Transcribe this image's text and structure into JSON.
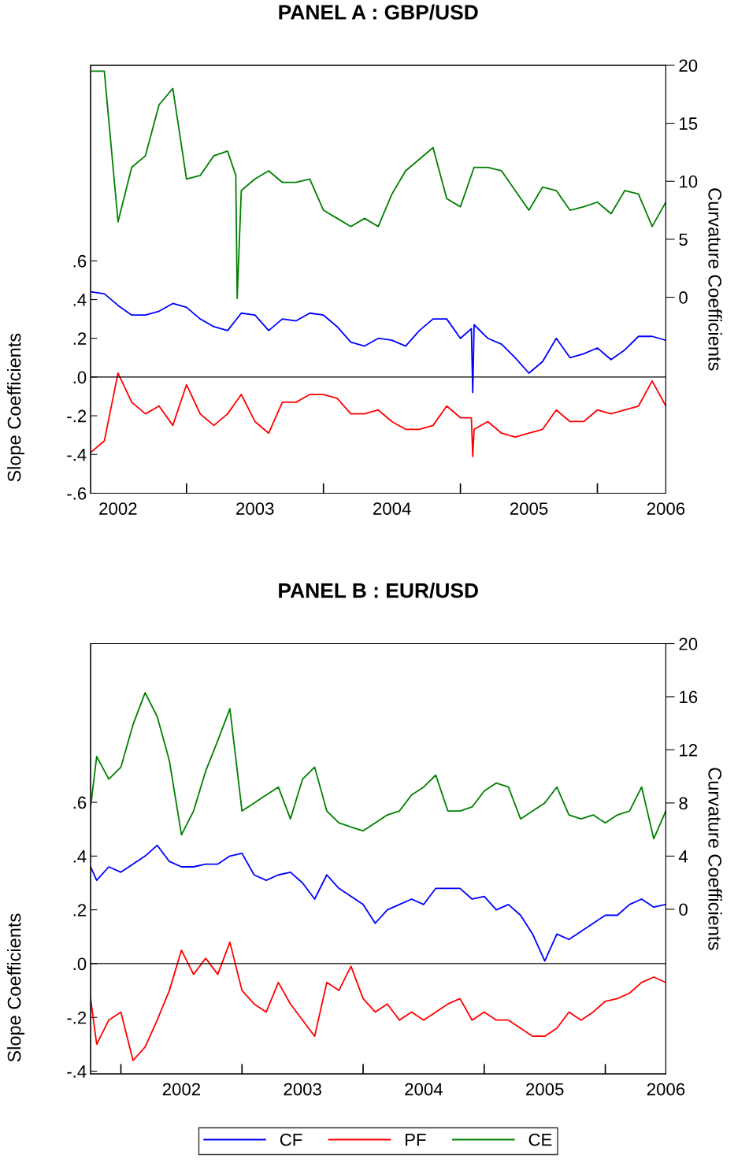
{
  "chart_data": [
    {
      "type": "line",
      "title": "PANEL A : GBP/USD",
      "ylabel": "Slope Coefficients",
      "y2label": "Curvature Coefficients",
      "x": [
        2002.3,
        2002.4,
        2002.5,
        2002.6,
        2002.7,
        2002.8,
        2002.9,
        2003.0,
        2003.1,
        2003.2,
        2003.3,
        2003.4,
        2003.5,
        2003.6,
        2003.7,
        2003.8,
        2003.9,
        2004.0,
        2004.1,
        2004.2,
        2004.3,
        2004.4,
        2004.5,
        2004.6,
        2004.7,
        2004.8,
        2004.9,
        2005.0,
        2005.08,
        2005.09,
        2005.1,
        2005.2,
        2005.3,
        2005.4,
        2005.5,
        2005.6,
        2005.7,
        2005.8,
        2005.9,
        2006.0,
        2006.1,
        2006.2,
        2006.3,
        2006.4,
        2006.5
      ],
      "series": [
        {
          "color": "#0000ff",
          "values": [
            0.44,
            0.43,
            0.37,
            0.32,
            0.32,
            0.34,
            0.38,
            0.36,
            0.3,
            0.26,
            0.24,
            0.33,
            0.32,
            0.24,
            0.3,
            0.29,
            0.33,
            0.32,
            0.26,
            0.18,
            0.16,
            0.2,
            0.19,
            0.16,
            0.24,
            0.3,
            0.3,
            0.2,
            0.25,
            -0.08,
            0.27,
            0.2,
            0.17,
            0.1,
            0.02,
            0.08,
            0.2,
            0.1,
            0.12,
            0.15,
            0.09,
            0.14,
            0.21,
            0.21,
            0.19
          ]
        },
        {
          "color": "#ff0000",
          "values": [
            -0.39,
            -0.33,
            0.02,
            -0.13,
            -0.19,
            -0.15,
            -0.25,
            -0.04,
            -0.19,
            -0.25,
            -0.19,
            -0.09,
            -0.23,
            -0.29,
            -0.13,
            -0.13,
            -0.09,
            -0.09,
            -0.11,
            -0.19,
            -0.19,
            -0.17,
            -0.23,
            -0.27,
            -0.27,
            -0.25,
            -0.15,
            -0.21,
            -0.21,
            -0.41,
            -0.27,
            -0.23,
            -0.29,
            -0.31,
            -0.29,
            -0.27,
            -0.17,
            -0.23,
            -0.23,
            -0.17,
            -0.19,
            -0.17,
            -0.15,
            -0.02,
            -0.15
          ]
        },
        {
          "color": "#008000",
          "axis": "y2",
          "x": [
            2002.3,
            2002.4,
            2002.5,
            2002.6,
            2002.7,
            2002.8,
            2002.9,
            2003.0,
            2003.1,
            2003.2,
            2003.3,
            2003.36,
            2003.37,
            2003.4,
            2003.5,
            2003.6,
            2003.7,
            2003.8,
            2003.9,
            2004.0,
            2004.1,
            2004.2,
            2004.3,
            2004.4,
            2004.5,
            2004.6,
            2004.7,
            2004.8,
            2004.9,
            2005.0,
            2005.1,
            2005.2,
            2005.3,
            2005.4,
            2005.5,
            2005.6,
            2005.7,
            2005.8,
            2005.9,
            2006.0,
            2006.1,
            2006.2,
            2006.3,
            2006.4,
            2006.5
          ],
          "values": [
            19.5,
            19.5,
            6.5,
            11.2,
            12.2,
            16.6,
            18.0,
            10.2,
            10.5,
            12.2,
            12.6,
            10.5,
            -0.1,
            9.2,
            10.2,
            10.9,
            9.9,
            9.9,
            10.2,
            7.5,
            6.8,
            6.1,
            6.8,
            6.1,
            8.9,
            10.9,
            11.9,
            12.9,
            8.5,
            7.8,
            11.2,
            11.2,
            10.9,
            9.2,
            7.5,
            9.5,
            9.2,
            7.5,
            7.8,
            8.2,
            7.2,
            9.2,
            8.9,
            6.1,
            8.2
          ]
        }
      ],
      "xlim": [
        2002.3,
        2006.5
      ],
      "xticks": [
        {
          "value": 2002.5,
          "label": "2002"
        },
        {
          "value": 2003.0,
          "label": null
        },
        {
          "value": 2003.5,
          "label": "2003"
        },
        {
          "value": 2004.0,
          "label": null
        },
        {
          "value": 2004.5,
          "label": "2004"
        },
        {
          "value": 2005.0,
          "label": null
        },
        {
          "value": 2005.5,
          "label": "2005"
        },
        {
          "value": 2006.0,
          "label": null
        },
        {
          "value": 2006.5,
          "label": "2006"
        }
      ],
      "ylim": [
        -0.6,
        1.61
      ],
      "yticks": [
        {
          "value": -0.6,
          "label": "-.6"
        },
        {
          "value": -0.4,
          "label": "-.4"
        },
        {
          "value": -0.2,
          "label": "-.2"
        },
        {
          "value": 0.0,
          "label": ".0"
        },
        {
          "value": 0.2,
          "label": ".2"
        },
        {
          "value": 0.4,
          "label": ".4"
        },
        {
          "value": 0.6,
          "label": ".6"
        }
      ],
      "y2lim": [
        -16.9,
        20
      ],
      "y2ticks": [
        0,
        5,
        10,
        15,
        20
      ],
      "ref_lines": [
        {
          "axis": "y",
          "value": 0,
          "color": "#000000"
        }
      ],
      "grid": false,
      "legend": false
    },
    {
      "type": "line",
      "title": "PANEL B : EUR/USD",
      "ylabel": "Slope Coefficients",
      "y2label": "Curvature Coefficients",
      "x": [
        2001.75,
        2001.8,
        2001.9,
        2002.0,
        2002.1,
        2002.2,
        2002.3,
        2002.4,
        2002.5,
        2002.6,
        2002.7,
        2002.8,
        2002.9,
        2003.0,
        2003.1,
        2003.2,
        2003.3,
        2003.4,
        2003.5,
        2003.6,
        2003.7,
        2003.8,
        2003.9,
        2004.0,
        2004.1,
        2004.2,
        2004.3,
        2004.4,
        2004.5,
        2004.6,
        2004.7,
        2004.8,
        2004.9,
        2005.0,
        2005.1,
        2005.2,
        2005.3,
        2005.4,
        2005.5,
        2005.6,
        2005.7,
        2005.8,
        2005.9,
        2006.0,
        2006.1,
        2006.2,
        2006.3,
        2006.4,
        2006.5
      ],
      "series": [
        {
          "name": "CF",
          "color": "#0000ff",
          "values": [
            0.36,
            0.31,
            0.36,
            0.34,
            0.37,
            0.4,
            0.44,
            0.38,
            0.36,
            0.36,
            0.37,
            0.37,
            0.4,
            0.41,
            0.33,
            0.31,
            0.33,
            0.34,
            0.3,
            0.24,
            0.33,
            0.28,
            0.25,
            0.22,
            0.15,
            0.2,
            0.22,
            0.24,
            0.22,
            0.28,
            0.28,
            0.28,
            0.24,
            0.25,
            0.2,
            0.22,
            0.18,
            0.11,
            0.01,
            0.11,
            0.09,
            0.12,
            0.15,
            0.18,
            0.18,
            0.22,
            0.24,
            0.21,
            0.22
          ]
        },
        {
          "name": "PF",
          "color": "#ff0000",
          "values": [
            -0.13,
            -0.3,
            -0.21,
            -0.18,
            -0.36,
            -0.31,
            -0.21,
            -0.1,
            0.05,
            -0.04,
            0.02,
            -0.04,
            0.08,
            -0.1,
            -0.15,
            -0.18,
            -0.07,
            -0.15,
            -0.21,
            -0.27,
            -0.07,
            -0.1,
            -0.01,
            -0.13,
            -0.18,
            -0.15,
            -0.21,
            -0.18,
            -0.21,
            -0.18,
            -0.15,
            -0.13,
            -0.21,
            -0.18,
            -0.21,
            -0.21,
            -0.24,
            -0.27,
            -0.27,
            -0.24,
            -0.18,
            -0.21,
            -0.18,
            -0.14,
            -0.13,
            -0.11,
            -0.07,
            -0.05,
            -0.07
          ]
        },
        {
          "name": "CE",
          "color": "#008000",
          "axis": "y2",
          "values": [
            7.7,
            11.5,
            9.8,
            10.7,
            13.9,
            16.3,
            14.5,
            11.2,
            5.6,
            7.4,
            10.4,
            12.7,
            15.1,
            7.4,
            8.0,
            8.6,
            9.2,
            6.8,
            9.8,
            10.7,
            7.4,
            6.5,
            6.2,
            5.9,
            6.5,
            7.1,
            7.4,
            8.6,
            9.2,
            10.1,
            7.4,
            7.4,
            7.7,
            8.9,
            9.5,
            9.2,
            6.8,
            7.4,
            8.0,
            9.2,
            7.1,
            6.8,
            7.1,
            6.5,
            7.1,
            7.4,
            9.2,
            5.3,
            7.4
          ]
        }
      ],
      "xlim": [
        2001.75,
        2006.5
      ],
      "xticks": [
        {
          "value": 2002.0,
          "label": null
        },
        {
          "value": 2002.5,
          "label": "2002"
        },
        {
          "value": 2003.0,
          "label": null
        },
        {
          "value": 2003.5,
          "label": "2003"
        },
        {
          "value": 2004.0,
          "label": null
        },
        {
          "value": 2004.5,
          "label": "2004"
        },
        {
          "value": 2005.0,
          "label": null
        },
        {
          "value": 2005.5,
          "label": "2005"
        },
        {
          "value": 2006.0,
          "label": null
        },
        {
          "value": 2006.5,
          "label": "2006"
        }
      ],
      "ylim": [
        -0.41,
        1.19
      ],
      "yticks": [
        {
          "value": -0.4,
          "label": "-.4"
        },
        {
          "value": -0.2,
          "label": "-.2"
        },
        {
          "value": 0.0,
          "label": ".0"
        },
        {
          "value": 0.2,
          "label": ".2"
        },
        {
          "value": 0.4,
          "label": ".4"
        },
        {
          "value": 0.6,
          "label": ".6"
        }
      ],
      "y2lim": [
        -12.4,
        20
      ],
      "y2ticks": [
        0,
        4,
        8,
        12,
        16,
        20
      ],
      "ref_lines": [
        {
          "axis": "y",
          "value": 0,
          "color": "#000000"
        }
      ],
      "grid": false,
      "legend": "bottom"
    }
  ]
}
